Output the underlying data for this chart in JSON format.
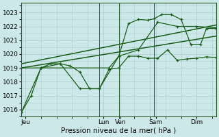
{
  "bg_color": "#cce8e8",
  "grid_color": "#aacece",
  "line_color": "#1a5c1a",
  "xlabel": "Pression niveau de la mer( hPa )",
  "ylim": [
    1015.5,
    1023.7
  ],
  "yticks": [
    1016,
    1017,
    1018,
    1019,
    1020,
    1021,
    1022,
    1023
  ],
  "xlabel_fontsize": 7.5,
  "tick_fontsize": 6.5,
  "xlim": [
    0,
    100
  ],
  "x_day_labels": [
    {
      "label": "Jeu",
      "x": 2
    },
    {
      "label": "Lun",
      "x": 42
    },
    {
      "label": "Ven",
      "x": 51
    },
    {
      "label": "Sam",
      "x": 69
    },
    {
      "label": "Dim",
      "x": 90
    }
  ],
  "x_vert_lines": [
    0,
    40,
    50,
    68,
    100
  ],
  "series1_x": [
    0,
    5,
    10,
    15,
    20,
    25,
    30,
    35,
    40,
    45,
    50,
    55,
    60,
    65,
    70,
    75,
    80,
    85,
    90,
    95,
    100
  ],
  "series1_y": [
    1015.8,
    1017.0,
    1019.0,
    1019.3,
    1019.3,
    1019.15,
    1018.7,
    1017.5,
    1017.5,
    1018.9,
    1019.0,
    1019.85,
    1019.85,
    1019.7,
    1019.7,
    1020.3,
    1019.55,
    1019.65,
    1019.7,
    1019.8,
    1019.75
  ],
  "series2_x": [
    0,
    45,
    50,
    55,
    60,
    65,
    68,
    72,
    77,
    82,
    87,
    92,
    95,
    100
  ],
  "series2_y": [
    1019.0,
    1019.0,
    1019.85,
    1022.2,
    1022.5,
    1022.45,
    1022.55,
    1022.85,
    1022.85,
    1022.5,
    1020.7,
    1020.7,
    1021.85,
    1021.85
  ],
  "series3_x": [
    0,
    10,
    20,
    30,
    40,
    50,
    60,
    70,
    80,
    90,
    100
  ],
  "series3_y": [
    1015.8,
    1019.0,
    1019.3,
    1017.5,
    1017.5,
    1019.85,
    1020.3,
    1022.3,
    1022.0,
    1022.0,
    1021.9
  ],
  "trend1_x": [
    0,
    100
  ],
  "trend1_y": [
    1019.0,
    1021.3
  ],
  "trend2_x": [
    0,
    100
  ],
  "trend2_y": [
    1019.3,
    1022.1
  ]
}
